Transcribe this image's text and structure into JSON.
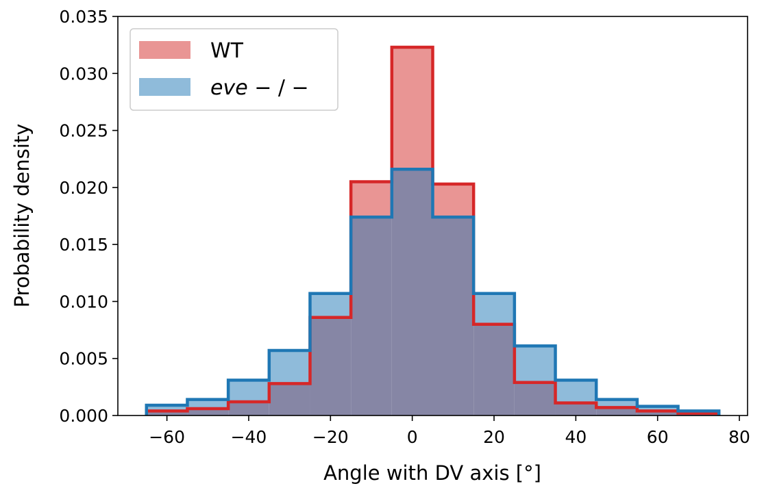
{
  "chart_data": {
    "type": "histogram",
    "xlabel": "Angle with DV axis [°]",
    "ylabel": "Probability density",
    "xlim": [
      -72,
      82
    ],
    "ylim": [
      0,
      0.035
    ],
    "xticks": [
      -60,
      -40,
      -20,
      0,
      20,
      40,
      60,
      80
    ],
    "xtick_labels": [
      "−60",
      "−40",
      "−20",
      "0",
      "20",
      "40",
      "60",
      "80"
    ],
    "yticks": [
      0,
      0.005,
      0.01,
      0.015,
      0.02,
      0.025,
      0.03,
      0.035
    ],
    "ytick_labels": [
      "0.000",
      "0.005",
      "0.010",
      "0.015",
      "0.020",
      "0.025",
      "0.030",
      "0.035"
    ],
    "bin_edges": [
      -65,
      -55,
      -45,
      -35,
      -25,
      -15,
      -5,
      5,
      15,
      25,
      35,
      45,
      55,
      65,
      75
    ],
    "series": [
      {
        "name": "WT",
        "fill": "#e99594",
        "edge": "#d62728",
        "values": [
          0.0004,
          0.0006,
          0.0012,
          0.0028,
          0.0086,
          0.0205,
          0.0323,
          0.0203,
          0.008,
          0.0029,
          0.0011,
          0.0007,
          0.0004,
          0.0002
        ]
      },
      {
        "name_parts": [
          {
            "text": "eve",
            "italic": true
          },
          {
            "text": " − / −",
            "italic": false
          }
        ],
        "fill": "#8fbbda",
        "edge": "#1f77b4",
        "values": [
          0.0009,
          0.0014,
          0.0031,
          0.0057,
          0.0107,
          0.0174,
          0.0216,
          0.0174,
          0.0107,
          0.0061,
          0.0031,
          0.0014,
          0.0008,
          0.0004
        ]
      }
    ],
    "overlap_fill": "#8686a5",
    "legend_position": "upper-left",
    "grid": false
  }
}
